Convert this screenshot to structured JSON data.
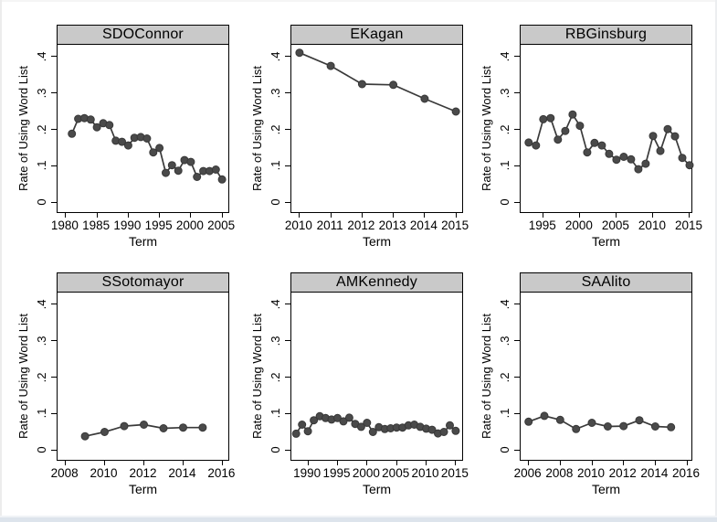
{
  "figure": {
    "ylabel": "Rate of Using Word List",
    "xlabel": "Term",
    "colors": {
      "header_bg": "#c9c9c9",
      "frame": "#000000",
      "line": "#3a3a3a",
      "marker_fill": "#4a4a4a",
      "marker_stroke": "#383838"
    }
  },
  "chart_data": [
    {
      "type": "line",
      "title": "SDOConnor",
      "xlabel": "Term",
      "ylabel": "Rate of Using Word List",
      "x_ticks": [
        1980,
        1985,
        1990,
        1995,
        2000,
        2005
      ],
      "xlim": [
        1978.7,
        2006.3
      ],
      "ylim": [
        0,
        0.4
      ],
      "y_ticks": [
        0,
        0.1,
        0.2,
        0.3,
        0.4
      ],
      "y_tick_labels": [
        "0",
        ".1",
        ".2",
        ".3",
        ".4"
      ],
      "x": [
        1981,
        1982,
        1983,
        1984,
        1985,
        1986,
        1987,
        1988,
        1989,
        1990,
        1991,
        1992,
        1993,
        1994,
        1995,
        1996,
        1997,
        1998,
        1999,
        2000,
        2001,
        2002,
        2003,
        2004,
        2005
      ],
      "y": [
        0.188,
        0.229,
        0.231,
        0.227,
        0.206,
        0.217,
        0.212,
        0.169,
        0.166,
        0.156,
        0.177,
        0.179,
        0.175,
        0.137,
        0.149,
        0.081,
        0.102,
        0.087,
        0.116,
        0.111,
        0.07,
        0.086,
        0.086,
        0.09,
        0.063
      ]
    },
    {
      "type": "line",
      "title": "EKagan",
      "xlabel": "Term",
      "ylabel": "Rate of Using Word List",
      "x_ticks": [
        2010,
        2011,
        2012,
        2013,
        2014,
        2015
      ],
      "xlim": [
        2009.74,
        2015.26
      ],
      "ylim": [
        0,
        0.4
      ],
      "y_ticks": [
        0,
        0.1,
        0.2,
        0.3,
        0.4
      ],
      "y_tick_labels": [
        "0",
        ".1",
        ".2",
        ".3",
        ".4"
      ],
      "x": [
        2010,
        2011,
        2012,
        2013,
        2014,
        2015
      ],
      "y": [
        0.41,
        0.374,
        0.324,
        0.322,
        0.284,
        0.249
      ]
    },
    {
      "type": "line",
      "title": "RBGinsburg",
      "xlabel": "Term",
      "ylabel": "Rate of Using Word List",
      "x_ticks": [
        1995,
        2000,
        2005,
        2010,
        2015
      ],
      "xlim": [
        1991.9,
        2015.5
      ],
      "ylim": [
        0,
        0.4
      ],
      "y_ticks": [
        0,
        0.1,
        0.2,
        0.3,
        0.4
      ],
      "y_tick_labels": [
        "0",
        ".1",
        ".2",
        ".3",
        ".4"
      ],
      "x": [
        1993,
        1994,
        1995,
        1996,
        1997,
        1998,
        1999,
        2000,
        2001,
        2002,
        2003,
        2004,
        2005,
        2006,
        2007,
        2008,
        2009,
        2010,
        2011,
        2012,
        2013,
        2014,
        2015
      ],
      "y": [
        0.164,
        0.156,
        0.228,
        0.231,
        0.172,
        0.196,
        0.241,
        0.21,
        0.137,
        0.163,
        0.156,
        0.133,
        0.117,
        0.125,
        0.118,
        0.091,
        0.106,
        0.182,
        0.141,
        0.201,
        0.181,
        0.122,
        0.102
      ]
    },
    {
      "type": "line",
      "title": "SSotomayor",
      "xlabel": "Term",
      "ylabel": "Rate of Using Word List",
      "x_ticks": [
        2008,
        2010,
        2012,
        2014,
        2016
      ],
      "xlim": [
        2007.6,
        2016.4
      ],
      "ylim": [
        0,
        0.4
      ],
      "y_ticks": [
        0,
        0.1,
        0.2,
        0.3,
        0.4
      ],
      "y_tick_labels": [
        "0",
        ".1",
        ".2",
        ".3",
        ".4"
      ],
      "x": [
        2009,
        2010,
        2011,
        2012,
        2013,
        2014,
        2015
      ],
      "y": [
        0.038,
        0.05,
        0.066,
        0.07,
        0.06,
        0.062,
        0.062
      ]
    },
    {
      "type": "line",
      "title": "AMKennedy",
      "xlabel": "Term",
      "ylabel": "Rate of Using Word List",
      "x_ticks": [
        1990,
        1995,
        2000,
        2005,
        2010,
        2015
      ],
      "xlim": [
        1987.2,
        2016.4
      ],
      "ylim": [
        0,
        0.4
      ],
      "y_ticks": [
        0,
        0.1,
        0.2,
        0.3,
        0.4
      ],
      "y_tick_labels": [
        "0",
        ".1",
        ".2",
        ".3",
        ".4"
      ],
      "x": [
        1988,
        1989,
        1990,
        1991,
        1992,
        1993,
        1994,
        1995,
        1996,
        1997,
        1998,
        1999,
        2000,
        2001,
        2002,
        2003,
        2004,
        2005,
        2006,
        2007,
        2008,
        2009,
        2010,
        2011,
        2012,
        2013,
        2014,
        2015
      ],
      "y": [
        0.045,
        0.07,
        0.052,
        0.082,
        0.093,
        0.088,
        0.084,
        0.088,
        0.079,
        0.089,
        0.072,
        0.064,
        0.075,
        0.05,
        0.063,
        0.058,
        0.06,
        0.062,
        0.062,
        0.068,
        0.07,
        0.064,
        0.059,
        0.056,
        0.046,
        0.05,
        0.068,
        0.053
      ]
    },
    {
      "type": "line",
      "title": "SAAlito",
      "xlabel": "Term",
      "ylabel": "Rate of Using Word List",
      "x_ticks": [
        2006,
        2008,
        2010,
        2012,
        2014,
        2016
      ],
      "xlim": [
        2005.5,
        2016.4
      ],
      "ylim": [
        0,
        0.4
      ],
      "y_ticks": [
        0,
        0.1,
        0.2,
        0.3,
        0.4
      ],
      "y_tick_labels": [
        "0",
        ".1",
        ".2",
        ".3",
        ".4"
      ],
      "x": [
        2006,
        2007,
        2008,
        2009,
        2010,
        2011,
        2012,
        2013,
        2014,
        2015
      ],
      "y": [
        0.078,
        0.094,
        0.083,
        0.058,
        0.075,
        0.065,
        0.066,
        0.082,
        0.065,
        0.063
      ]
    }
  ]
}
